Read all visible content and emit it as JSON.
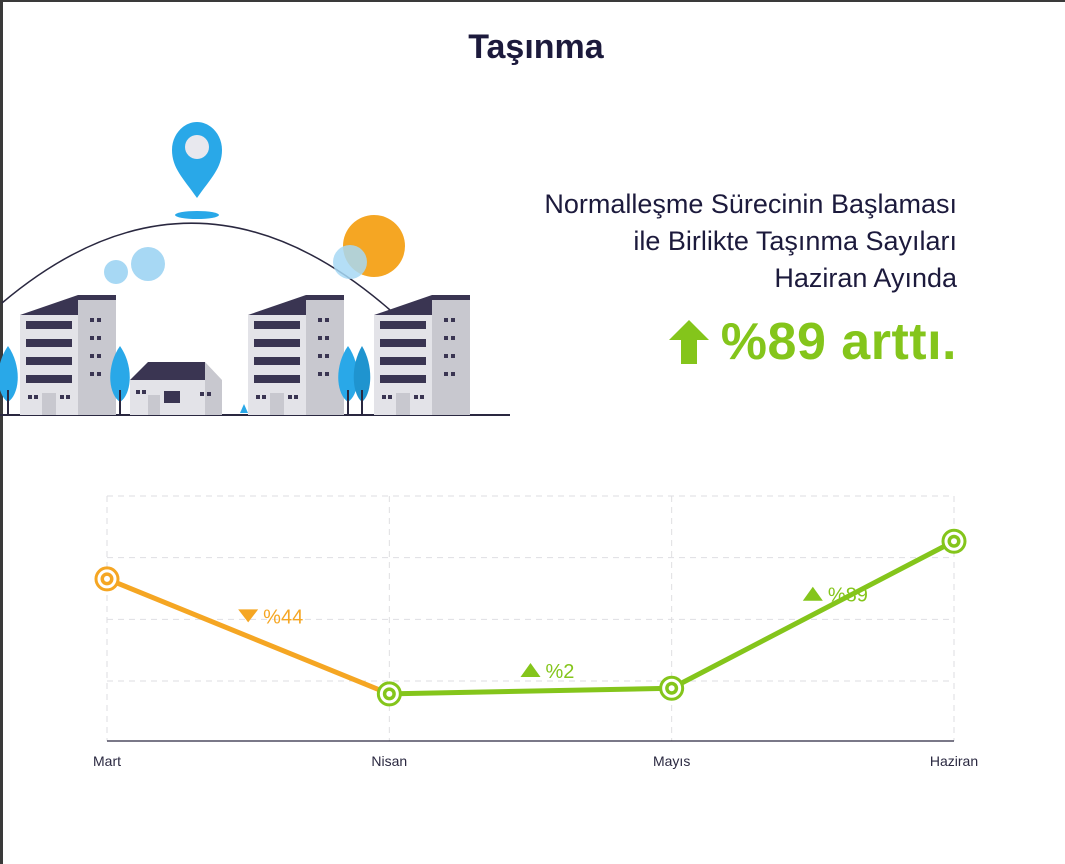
{
  "title": "Taşınma",
  "headline": {
    "lines": [
      "Normalleşme Sürecinin Başlaması",
      "ile Birlikte Taşınma Sayıları",
      "Haziran Ayında"
    ],
    "stat": "%89 arttı.",
    "stat_color": "#84c51b"
  },
  "colors": {
    "orange": "#f5a623",
    "green": "#84c51b",
    "title": "#1c1a3c"
  },
  "chart_data": {
    "type": "line",
    "categories": [
      "Mart",
      "Nisan",
      "Mayıs",
      "Haziran"
    ],
    "values": [
      3.8,
      0.75,
      0.9,
      4.8
    ],
    "ylim": [
      -0.5,
      6
    ],
    "grid": true,
    "legend": "none",
    "segments": [
      {
        "from": 0,
        "to": 1,
        "color": "#f5a623",
        "label": "%44",
        "direction": "down"
      },
      {
        "from": 1,
        "to": 2,
        "color": "#84c51b",
        "label": "%2",
        "direction": "up"
      },
      {
        "from": 2,
        "to": 3,
        "color": "#84c51b",
        "label": "%89",
        "direction": "up"
      }
    ]
  }
}
